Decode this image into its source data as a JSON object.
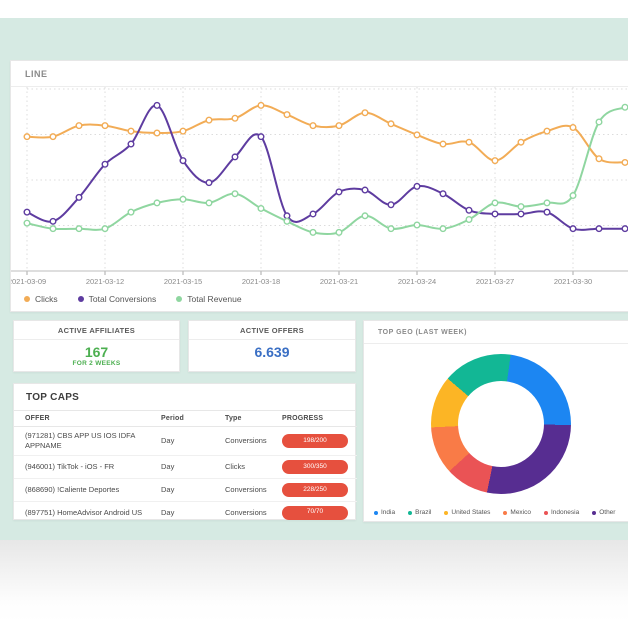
{
  "page": {
    "background_mint": "#d6eae3"
  },
  "line_card": {
    "title": "LINE",
    "legend": [
      {
        "label": "Clicks",
        "color": "#F2AC56"
      },
      {
        "label": "Total Conversions",
        "color": "#5E3CA0"
      },
      {
        "label": "Total Revenue",
        "color": "#8FD6A0"
      }
    ]
  },
  "chart_data": [
    {
      "type": "line",
      "title": "LINE",
      "x": [
        "2021-03-09",
        "2021-03-10",
        "2021-03-11",
        "2021-03-12",
        "2021-03-13",
        "2021-03-14",
        "2021-03-15",
        "2021-03-16",
        "2021-03-17",
        "2021-03-18",
        "2021-03-19",
        "2021-03-20",
        "2021-03-21",
        "2021-03-22",
        "2021-03-23",
        "2021-03-24",
        "2021-03-25",
        "2021-03-26",
        "2021-03-27",
        "2021-03-28",
        "2021-03-29",
        "2021-03-30",
        "2021-03-31",
        "2021-04-01"
      ],
      "x_ticks": [
        "2021-03-09",
        "2021-03-12",
        "2021-03-15",
        "2021-03-18",
        "2021-03-21",
        "2021-03-24",
        "2021-03-27",
        "2021-03-30"
      ],
      "series": [
        {
          "name": "Clicks",
          "color": "#F2AC56",
          "values": [
            73,
            73,
            79,
            79,
            76,
            75,
            76,
            82,
            83,
            90,
            85,
            79,
            79,
            86,
            80,
            74,
            69,
            70,
            60,
            70,
            76,
            78,
            61,
            59
          ]
        },
        {
          "name": "Total Conversions",
          "color": "#5E3CA0",
          "values": [
            32,
            27,
            40,
            58,
            69,
            90,
            60,
            48,
            62,
            73,
            30,
            31,
            43,
            44,
            36,
            46,
            42,
            33,
            31,
            31,
            32,
            23,
            23,
            23
          ]
        },
        {
          "name": "Total Revenue",
          "color": "#8FD6A0",
          "values": [
            26,
            23,
            23,
            23,
            32,
            37,
            39,
            37,
            42,
            34,
            27,
            21,
            21,
            30,
            23,
            25,
            23,
            28,
            37,
            35,
            37,
            41,
            81,
            89
          ]
        }
      ],
      "ylim": [
        0,
        100
      ],
      "grid": true,
      "legend_position": "bottom-left",
      "note": "y-axis labels cropped out of view; values are relative 0-100 of plot height"
    },
    {
      "type": "pie",
      "subtype": "donut",
      "title": "TOP GEO (LAST WEEK)",
      "labels": [
        "India",
        "Brazil",
        "United States",
        "Mexico",
        "Indonesia",
        "Other"
      ],
      "values": [
        23,
        16,
        12,
        11,
        10,
        28
      ],
      "colors": [
        "#1C86F2",
        "#12B795",
        "#FCB525",
        "#F97B47",
        "#EA5355",
        "#572D91"
      ],
      "draw_order_clockwise_from_top": [
        0,
        5,
        4,
        3,
        2,
        1
      ],
      "start_angle_deg": 8,
      "legend_position": "bottom"
    }
  ],
  "stats": {
    "affiliates": {
      "title": "ACTIVE AFFILIATES",
      "value": "167",
      "subtitle": "FOR 2 WEEKS",
      "value_color": "#4CAF50"
    },
    "offers": {
      "title": "ACTIVE OFFERS",
      "value": "6.639",
      "value_color": "#3A6FC4"
    }
  },
  "geo_card": {
    "title": "TOP GEO (LAST WEEK)"
  },
  "top_caps": {
    "title": "TOP CAPS",
    "columns": [
      "OFFER",
      "Period",
      "Type",
      "PROGRESS"
    ],
    "badge_color": "#E6503E",
    "rows": [
      {
        "offer": "(971281) CBS APP US IOS IDFA APPNAME",
        "period": "Day",
        "type": "Conversions",
        "progress": "198/200"
      },
      {
        "offer": "(946001) TikTok - iOS - FR",
        "period": "Day",
        "type": "Clicks",
        "progress": "300/350"
      },
      {
        "offer": "(868690) !Caliente Deportes",
        "period": "Day",
        "type": "Conversions",
        "progress": "228/250"
      },
      {
        "offer": "(897751) HomeAdvisor Android US",
        "period": "Day",
        "type": "Conversions",
        "progress": "70/70"
      }
    ]
  }
}
